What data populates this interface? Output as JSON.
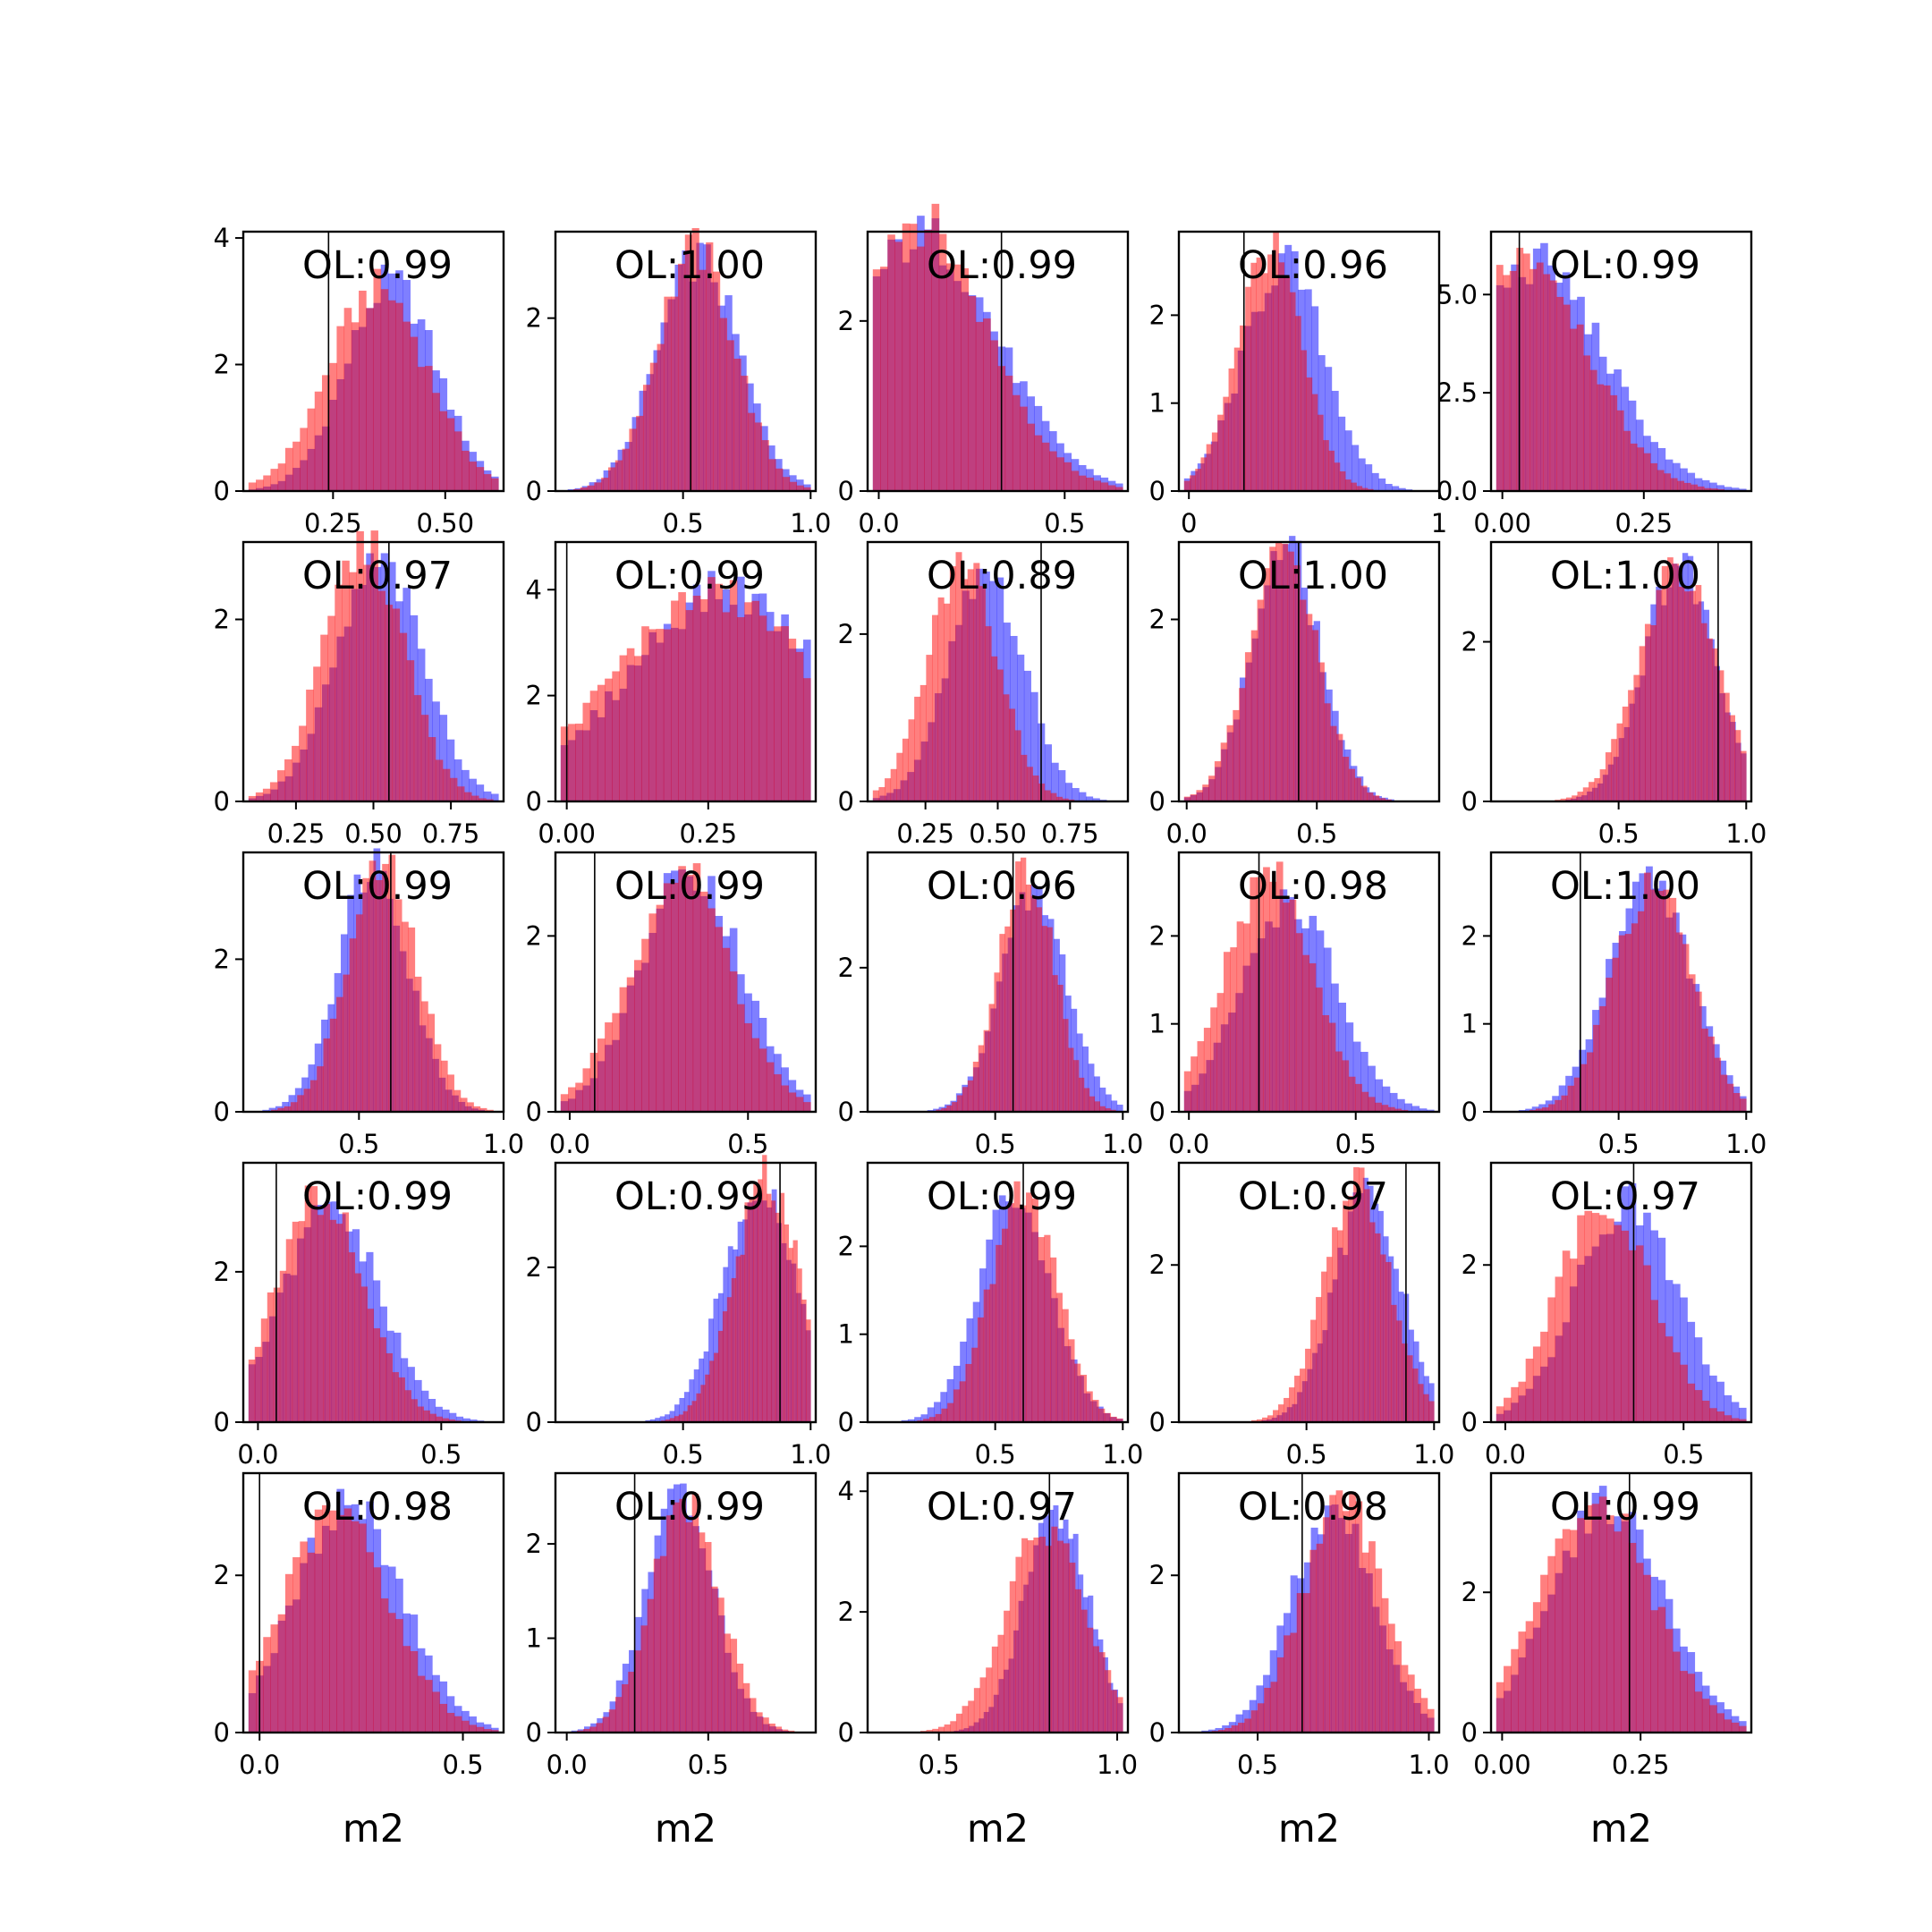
{
  "figure": {
    "background": "#ffffff"
  },
  "colors": {
    "series_a": "#0000ff",
    "series_b": "#ff0000",
    "alpha": 0.5,
    "marker_line": "#000000"
  },
  "chart_data": [
    {
      "type": "bar",
      "label": "OL:0.99",
      "xlim": [
        0.05,
        0.63
      ],
      "ylim": [
        0,
        4.1
      ],
      "xticks": [
        0.25,
        0.5
      ],
      "xtick_labels": [
        "0.25",
        "0.50"
      ],
      "yticks": [
        0,
        2,
        4
      ],
      "ytick_labels": [
        "0",
        "2",
        "4"
      ],
      "marker": 0.24,
      "series": [
        {
          "name": "",
          "mean": 0.38,
          "sd": 0.1,
          "peak": 3.3
        },
        {
          "name": "",
          "mean": 0.35,
          "sd": 0.11,
          "peak": 3.2
        }
      ],
      "xlabel": ""
    },
    {
      "type": "bar",
      "label": "OL:1.00",
      "xlim": [
        0.0,
        1.02
      ],
      "ylim": [
        0,
        3.0
      ],
      "xticks": [
        0.5,
        1.0
      ],
      "xtick_labels": [
        "0.5",
        "1.0"
      ],
      "yticks": [
        0,
        2
      ],
      "ytick_labels": [
        "0",
        "2"
      ],
      "marker": 0.53,
      "series": [
        {
          "name": "",
          "mean": 0.56,
          "sd": 0.16,
          "peak": 2.7
        },
        {
          "name": "",
          "mean": 0.55,
          "sd": 0.15,
          "peak": 2.8
        }
      ],
      "xlabel": ""
    },
    {
      "type": "bar",
      "label": "OL:0.99",
      "xlim": [
        -0.03,
        0.67
      ],
      "ylim": [
        0,
        3.05
      ],
      "xticks": [
        0.0,
        0.5
      ],
      "xtick_labels": [
        "0.0",
        "0.5"
      ],
      "yticks": [
        0,
        2
      ],
      "ytick_labels": [
        "0",
        "2"
      ],
      "marker": 0.33,
      "series": [
        {
          "name": "",
          "mean": 0.12,
          "sd": 0.2,
          "peak": 3.0
        },
        {
          "name": "",
          "mean": 0.1,
          "sd": 0.19,
          "peak": 3.2
        }
      ],
      "xlabel": ""
    },
    {
      "type": "bar",
      "label": "OL:0.96",
      "xlim": [
        -0.04,
        1.0
      ],
      "ylim": [
        0,
        2.95
      ],
      "xticks": [
        0,
        1
      ],
      "xtick_labels": [
        "0",
        "1"
      ],
      "yticks": [
        0,
        1,
        2
      ],
      "ytick_labels": [
        "0",
        "1",
        "2"
      ],
      "marker": 0.22,
      "series": [
        {
          "name": "",
          "mean": 0.38,
          "sd": 0.16,
          "peak": 2.6
        },
        {
          "name": "",
          "mean": 0.32,
          "sd": 0.13,
          "peak": 2.75
        }
      ],
      "xlabel": ""
    },
    {
      "type": "bar",
      "label": "OL:0.99",
      "xlim": [
        -0.02,
        0.44
      ],
      "ylim": [
        0,
        6.6
      ],
      "xticks": [
        0.0,
        0.25
      ],
      "xtick_labels": [
        "0.00",
        "0.25"
      ],
      "yticks": [
        0,
        2.5,
        5.0
      ],
      "ytick_labels": [
        "0.0",
        "2.5",
        "5.0"
      ],
      "marker": 0.03,
      "series": [
        {
          "name": "",
          "mean": 0.06,
          "sd": 0.12,
          "peak": 5.8
        },
        {
          "name": "",
          "mean": 0.04,
          "sd": 0.11,
          "peak": 6.1
        }
      ],
      "xlabel": ""
    },
    {
      "type": "bar",
      "label": "OL:0.97",
      "xlim": [
        0.08,
        0.92
      ],
      "ylim": [
        0,
        2.85
      ],
      "xticks": [
        0.25,
        0.5,
        0.75
      ],
      "xtick_labels": [
        "0.25",
        "0.50",
        "0.75"
      ],
      "yticks": [
        0,
        2
      ],
      "ytick_labels": [
        "0",
        "2"
      ],
      "marker": 0.55,
      "series": [
        {
          "name": "",
          "mean": 0.52,
          "sd": 0.14,
          "peak": 2.6
        },
        {
          "name": "",
          "mean": 0.47,
          "sd": 0.13,
          "peak": 2.8
        }
      ],
      "xlabel": ""
    },
    {
      "type": "bar",
      "label": "OL:0.99",
      "xlim": [
        -0.02,
        0.44
      ],
      "ylim": [
        0,
        4.9
      ],
      "xticks": [
        0.0,
        0.25
      ],
      "xtick_labels": [
        "0.00",
        "0.25"
      ],
      "yticks": [
        0,
        2,
        4
      ],
      "ytick_labels": [
        "0",
        "2",
        "4"
      ],
      "marker": 0.0,
      "series": [
        {
          "name": "",
          "mean": 0.28,
          "sd": 0.17,
          "peak": 4.0
        },
        {
          "name": "",
          "mean": 0.26,
          "sd": 0.18,
          "peak": 3.9
        }
      ],
      "xlabel": ""
    },
    {
      "type": "bar",
      "label": "OL:0.89",
      "xlim": [
        0.05,
        0.95
      ],
      "ylim": [
        0,
        3.1
      ],
      "xticks": [
        0.25,
        0.5,
        0.75
      ],
      "xtick_labels": [
        "0.25",
        "0.50",
        "0.75"
      ],
      "yticks": [
        0,
        2
      ],
      "ytick_labels": [
        "0",
        "2"
      ],
      "marker": 0.65,
      "series": [
        {
          "name": "",
          "mean": 0.46,
          "sd": 0.13,
          "peak": 2.7
        },
        {
          "name": "",
          "mean": 0.38,
          "sd": 0.12,
          "peak": 2.85
        }
      ],
      "xlabel": ""
    },
    {
      "type": "bar",
      "label": "OL:1.00",
      "xlim": [
        -0.03,
        0.97
      ],
      "ylim": [
        0,
        2.85
      ],
      "xticks": [
        0.0,
        0.5
      ],
      "xtick_labels": [
        "0.0",
        "0.5"
      ],
      "yticks": [
        0,
        2
      ],
      "ytick_labels": [
        "0",
        "2"
      ],
      "marker": 0.43,
      "series": [
        {
          "name": "",
          "mean": 0.38,
          "sd": 0.13,
          "peak": 2.8
        },
        {
          "name": "",
          "mean": 0.37,
          "sd": 0.13,
          "peak": 2.75
        }
      ],
      "xlabel": ""
    },
    {
      "type": "bar",
      "label": "OL:1.00",
      "xlim": [
        0.0,
        1.02
      ],
      "ylim": [
        0,
        3.25
      ],
      "xticks": [
        0.5,
        1.0
      ],
      "xtick_labels": [
        "0.5",
        "1.0"
      ],
      "yticks": [
        0,
        2
      ],
      "ytick_labels": [
        "0",
        "2"
      ],
      "marker": 0.89,
      "series": [
        {
          "name": "",
          "mean": 0.74,
          "sd": 0.14,
          "peak": 3.0
        },
        {
          "name": "",
          "mean": 0.73,
          "sd": 0.15,
          "peak": 2.9
        }
      ],
      "xlabel": ""
    },
    {
      "type": "bar",
      "label": "OL:0.99",
      "xlim": [
        0.1,
        1.0
      ],
      "ylim": [
        0,
        3.4
      ],
      "xticks": [
        0.5,
        1.0
      ],
      "xtick_labels": [
        "0.5",
        "1.0"
      ],
      "yticks": [
        0,
        2
      ],
      "ytick_labels": [
        "0",
        "2"
      ],
      "marker": 0.61,
      "series": [
        {
          "name": "",
          "mean": 0.55,
          "sd": 0.12,
          "peak": 3.3
        },
        {
          "name": "",
          "mean": 0.58,
          "sd": 0.12,
          "peak": 3.2
        }
      ],
      "xlabel": ""
    },
    {
      "type": "bar",
      "label": "OL:0.99",
      "xlim": [
        -0.04,
        0.69
      ],
      "ylim": [
        0,
        2.95
      ],
      "xticks": [
        0.0,
        0.5
      ],
      "xtick_labels": [
        "0.0",
        "0.5"
      ],
      "yticks": [
        0,
        2
      ],
      "ytick_labels": [
        "0",
        "2"
      ],
      "marker": 0.07,
      "series": [
        {
          "name": "",
          "mean": 0.34,
          "sd": 0.14,
          "peak": 2.8
        },
        {
          "name": "",
          "mean": 0.31,
          "sd": 0.14,
          "peak": 2.75
        }
      ],
      "xlabel": ""
    },
    {
      "type": "bar",
      "label": "OL:0.96",
      "xlim": [
        0.0,
        1.02
      ],
      "ylim": [
        0,
        3.6
      ],
      "xticks": [
        0.5,
        1.0
      ],
      "xtick_labels": [
        "0.5",
        "1.0"
      ],
      "yticks": [
        0,
        2
      ],
      "ytick_labels": [
        "0",
        "2"
      ],
      "marker": 0.57,
      "series": [
        {
          "name": "",
          "mean": 0.65,
          "sd": 0.13,
          "peak": 3.0
        },
        {
          "name": "",
          "mean": 0.62,
          "sd": 0.11,
          "peak": 3.4
        }
      ],
      "xlabel": ""
    },
    {
      "type": "bar",
      "label": "OL:0.98",
      "xlim": [
        -0.03,
        0.75
      ],
      "ylim": [
        0,
        2.95
      ],
      "xticks": [
        0.0,
        0.5
      ],
      "xtick_labels": [
        "0.0",
        "0.5"
      ],
      "yticks": [
        0,
        1,
        2
      ],
      "ytick_labels": [
        "0",
        "1",
        "2"
      ],
      "marker": 0.21,
      "series": [
        {
          "name": "",
          "mean": 0.3,
          "sd": 0.14,
          "peak": 2.4
        },
        {
          "name": "",
          "mean": 0.24,
          "sd": 0.13,
          "peak": 2.7
        }
      ],
      "xlabel": ""
    },
    {
      "type": "bar",
      "label": "OL:1.00",
      "xlim": [
        0.0,
        1.02
      ],
      "ylim": [
        0,
        2.95
      ],
      "xticks": [
        0.5,
        1.0
      ],
      "xtick_labels": [
        "0.5",
        "1.0"
      ],
      "yticks": [
        0,
        1,
        2
      ],
      "ytick_labels": [
        "0",
        "1",
        "2"
      ],
      "marker": 0.35,
      "series": [
        {
          "name": "",
          "mean": 0.62,
          "sd": 0.16,
          "peak": 2.7
        },
        {
          "name": "",
          "mean": 0.63,
          "sd": 0.15,
          "peak": 2.6
        }
      ],
      "xlabel": ""
    },
    {
      "type": "bar",
      "label": "OL:0.99",
      "xlim": [
        -0.04,
        0.67
      ],
      "ylim": [
        0,
        3.45
      ],
      "xticks": [
        0.0,
        0.5
      ],
      "xtick_labels": [
        "0.0",
        "0.5"
      ],
      "yticks": [
        0,
        2
      ],
      "ytick_labels": [
        "0",
        "2"
      ],
      "marker": 0.05,
      "series": [
        {
          "name": "",
          "mean": 0.2,
          "sd": 0.13,
          "peak": 2.85
        },
        {
          "name": "",
          "mean": 0.17,
          "sd": 0.12,
          "peak": 3.0
        }
      ],
      "xlabel": ""
    },
    {
      "type": "bar",
      "label": "OL:0.99",
      "xlim": [
        0.0,
        1.02
      ],
      "ylim": [
        0,
        3.35
      ],
      "xticks": [
        0.5,
        1.0
      ],
      "xtick_labels": [
        "0.5",
        "1.0"
      ],
      "yticks": [
        0,
        2
      ],
      "ytick_labels": [
        "0",
        "2"
      ],
      "marker": 0.88,
      "series": [
        {
          "name": "",
          "mean": 0.8,
          "sd": 0.14,
          "peak": 3.1
        },
        {
          "name": "",
          "mean": 0.83,
          "sd": 0.13,
          "peak": 3.15
        }
      ],
      "xlabel": ""
    },
    {
      "type": "bar",
      "label": "OL:0.99",
      "xlim": [
        0.0,
        1.02
      ],
      "ylim": [
        0,
        2.95
      ],
      "xticks": [
        0.5,
        1.0
      ],
      "xtick_labels": [
        "0.5",
        "1.0"
      ],
      "yticks": [
        0,
        1,
        2
      ],
      "ytick_labels": [
        "0",
        "1",
        "2"
      ],
      "marker": 0.61,
      "series": [
        {
          "name": "",
          "mean": 0.58,
          "sd": 0.14,
          "peak": 2.6
        },
        {
          "name": "",
          "mean": 0.61,
          "sd": 0.13,
          "peak": 2.65
        }
      ],
      "xlabel": ""
    },
    {
      "type": "bar",
      "label": "OL:0.97",
      "xlim": [
        0.0,
        1.02
      ],
      "ylim": [
        0,
        3.3
      ],
      "xticks": [
        0.5,
        1.0
      ],
      "xtick_labels": [
        "0.5",
        "1.0"
      ],
      "yticks": [
        0,
        2
      ],
      "ytick_labels": [
        "0",
        "2"
      ],
      "marker": 0.89,
      "series": [
        {
          "name": "",
          "mean": 0.74,
          "sd": 0.13,
          "peak": 2.9
        },
        {
          "name": "",
          "mean": 0.7,
          "sd": 0.13,
          "peak": 3.0
        }
      ],
      "xlabel": ""
    },
    {
      "type": "bar",
      "label": "OL:0.97",
      "xlim": [
        -0.04,
        0.69
      ],
      "ylim": [
        0,
        3.3
      ],
      "xticks": [
        0.0,
        0.5
      ],
      "xtick_labels": [
        "0.0",
        "0.5"
      ],
      "yticks": [
        0,
        2
      ],
      "ytick_labels": [
        "0",
        "2"
      ],
      "marker": 0.36,
      "series": [
        {
          "name": "",
          "mean": 0.34,
          "sd": 0.14,
          "peak": 2.8
        },
        {
          "name": "",
          "mean": 0.28,
          "sd": 0.13,
          "peak": 2.85
        }
      ],
      "xlabel": ""
    },
    {
      "type": "bar",
      "label": "OL:0.98",
      "xlim": [
        -0.04,
        0.6
      ],
      "ylim": [
        0,
        3.3
      ],
      "xticks": [
        0.0,
        0.5
      ],
      "xtick_labels": [
        "0.0",
        "0.5"
      ],
      "yticks": [
        0,
        2
      ],
      "ytick_labels": [
        "0",
        "2"
      ],
      "marker": 0.0,
      "series": [
        {
          "name": "",
          "mean": 0.22,
          "sd": 0.13,
          "peak": 2.95
        },
        {
          "name": "",
          "mean": 0.19,
          "sd": 0.13,
          "peak": 2.8
        }
      ],
      "xlabel": "m2"
    },
    {
      "type": "bar",
      "label": "OL:0.99",
      "xlim": [
        -0.04,
        0.88
      ],
      "ylim": [
        0,
        2.75
      ],
      "xticks": [
        0.0,
        0.5
      ],
      "xtick_labels": [
        "0.0",
        "0.5"
      ],
      "yticks": [
        0,
        1,
        2
      ],
      "ytick_labels": [
        "0",
        "1",
        "2"
      ],
      "marker": 0.24,
      "series": [
        {
          "name": "",
          "mean": 0.4,
          "sd": 0.12,
          "peak": 2.5
        },
        {
          "name": "",
          "mean": 0.42,
          "sd": 0.12,
          "peak": 2.45
        }
      ],
      "xlabel": "m2"
    },
    {
      "type": "bar",
      "label": "OL:0.97",
      "xlim": [
        0.3,
        1.03
      ],
      "ylim": [
        0,
        4.3
      ],
      "xticks": [
        0.5,
        1.0
      ],
      "xtick_labels": [
        "0.5",
        "1.0"
      ],
      "yticks": [
        0,
        2,
        4
      ],
      "ytick_labels": [
        "0",
        "2",
        "4"
      ],
      "marker": 0.81,
      "series": [
        {
          "name": "",
          "mean": 0.83,
          "sd": 0.09,
          "peak": 3.7
        },
        {
          "name": "",
          "mean": 0.8,
          "sd": 0.11,
          "peak": 3.4
        }
      ],
      "xlabel": "m2"
    },
    {
      "type": "bar",
      "label": "OL:0.98",
      "xlim": [
        0.27,
        1.03
      ],
      "ylim": [
        0,
        3.3
      ],
      "xticks": [
        0.5,
        1.0
      ],
      "xtick_labels": [
        "0.5",
        "1.0"
      ],
      "yticks": [
        0,
        2
      ],
      "ytick_labels": [
        "0",
        "2"
      ],
      "marker": 0.63,
      "series": [
        {
          "name": "",
          "mean": 0.72,
          "sd": 0.12,
          "peak": 2.9
        },
        {
          "name": "",
          "mean": 0.75,
          "sd": 0.12,
          "peak": 2.9
        }
      ],
      "xlabel": "m2"
    },
    {
      "type": "bar",
      "label": "OL:0.99",
      "xlim": [
        -0.02,
        0.45
      ],
      "ylim": [
        0,
        3.7
      ],
      "xticks": [
        0.0,
        0.25
      ],
      "xtick_labels": [
        "0.00",
        "0.25"
      ],
      "yticks": [
        0,
        2
      ],
      "ytick_labels": [
        "0",
        "2"
      ],
      "marker": 0.23,
      "series": [
        {
          "name": "",
          "mean": 0.19,
          "sd": 0.1,
          "peak": 3.3
        },
        {
          "name": "",
          "mean": 0.17,
          "sd": 0.1,
          "peak": 3.3
        }
      ],
      "xlabel": "m2"
    }
  ]
}
